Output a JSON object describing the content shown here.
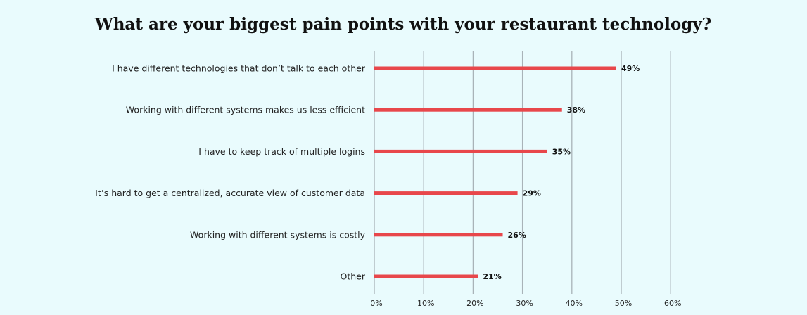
{
  "chart_data": {
    "type": "bar",
    "orientation": "horizontal",
    "title": "What are your biggest pain points with your restaurant technology?",
    "categories": [
      "I have different technologies that don’t talk to each other",
      "Working with different systems makes us less efficient",
      "I have to keep track of multiple logins",
      "It’s hard to get a centralized, accurate view of customer data",
      "Working with different systems is costly",
      "Other"
    ],
    "values": [
      49,
      38,
      35,
      29,
      26,
      21
    ],
    "value_labels": [
      "49%",
      "38%",
      "35%",
      "29%",
      "26%",
      "21%"
    ],
    "xlim": [
      0,
      60
    ],
    "xticks": [
      0,
      10,
      20,
      30,
      40,
      50,
      60
    ],
    "xtick_labels": [
      "0%",
      "10%",
      "20%",
      "30%",
      "40%",
      "50%",
      "60%"
    ],
    "xlabel": "",
    "ylabel": "",
    "grid": true,
    "legend": false,
    "bar_color": "#e8474b",
    "grid_color": "#a9b3b8",
    "background_color": "#e9fbfd"
  }
}
